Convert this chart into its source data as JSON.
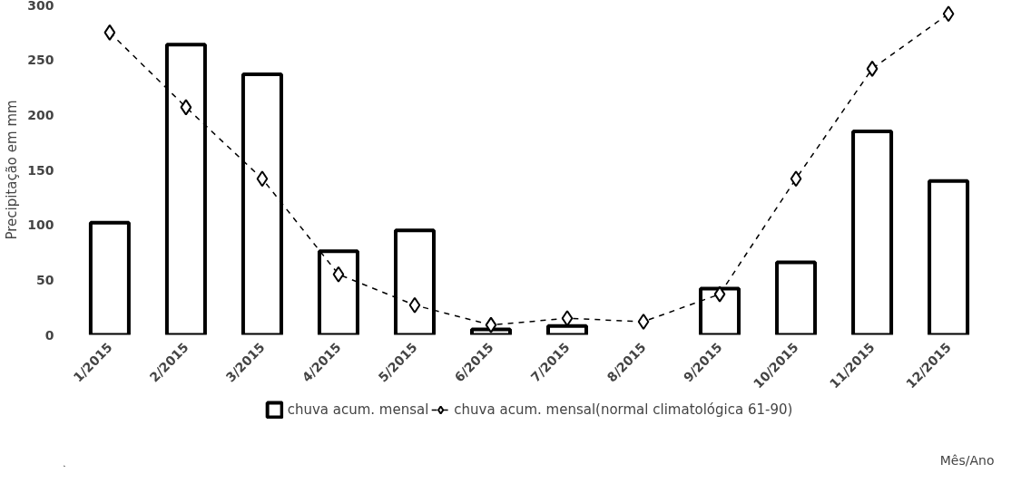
{
  "chart_data": {
    "type": "bar",
    "xlabel": "Mês/Ano",
    "ylabel": "Precipitação em mm",
    "categories": [
      "1/2015",
      "2/2015",
      "3/2015",
      "4/2015",
      "5/2015",
      "6/2015",
      "7/2015",
      "8/2015",
      "9/2015",
      "10/2015",
      "11/2015",
      "12/2015"
    ],
    "series": [
      {
        "name": "chuva acum. mensal",
        "color": "#ffffff",
        "values": [
          102,
          264,
          237,
          76,
          95,
          5,
          8,
          null,
          42,
          66,
          185,
          140
        ]
      },
      {
        "name": "chuva acum. mensal(normal climatológica 61-90)",
        "type": "line",
        "color": "#000000",
        "marker": "diamond",
        "line_style": "dashed",
        "values": [
          275,
          207,
          142,
          55,
          27,
          9,
          15,
          12,
          37,
          142,
          242,
          292
        ]
      }
    ],
    "ylim": [
      0,
      300
    ],
    "yticks": [
      0,
      50,
      100,
      150,
      200,
      250,
      300
    ],
    "grid": false,
    "legend": "bottom"
  }
}
